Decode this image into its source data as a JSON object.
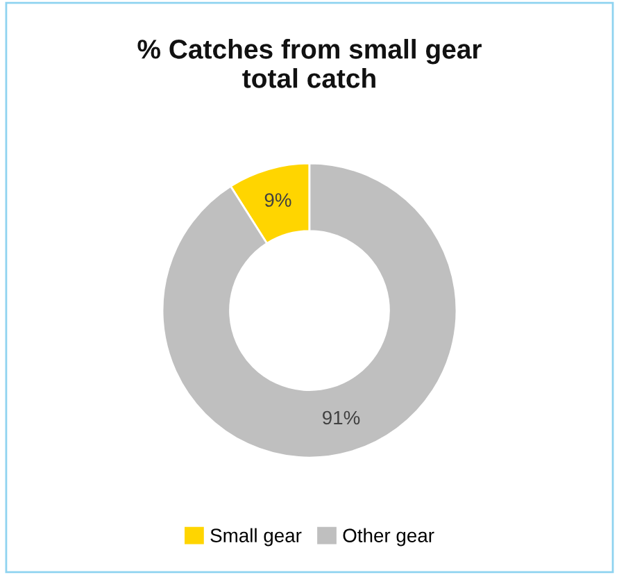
{
  "chart_data": {
    "type": "donut",
    "title": "% Catches from small gear\ntotal catch",
    "categories": [
      "Small gear",
      "Other gear"
    ],
    "values": [
      9,
      91
    ],
    "colors": [
      "#ffd500",
      "#bfbfbf"
    ],
    "value_labels": [
      "9%",
      "91%"
    ],
    "legend": "bottom"
  }
}
